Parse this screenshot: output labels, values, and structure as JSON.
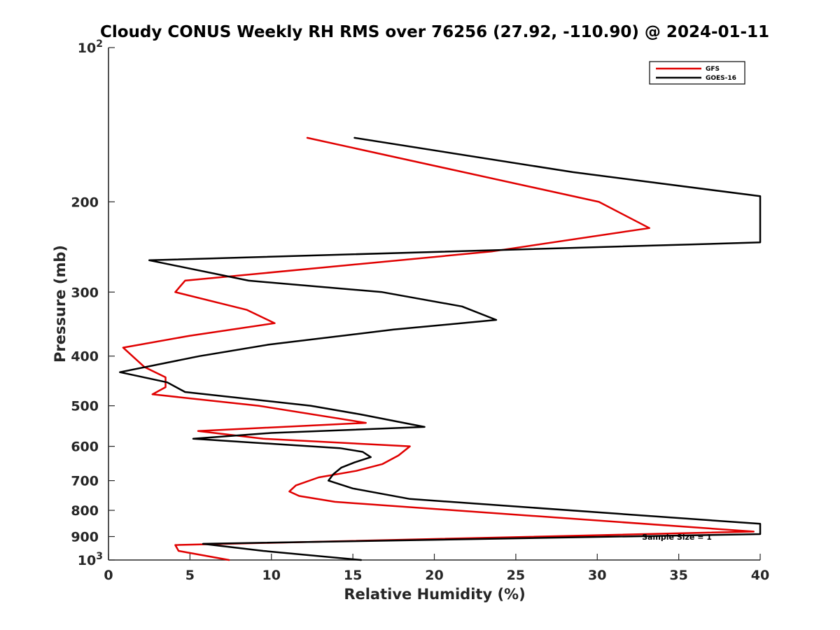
{
  "chart_data": {
    "type": "line",
    "title": "Cloudy CONUS Weekly RH RMS over 76256 (27.92, -110.90) @ 2024-01-11",
    "xlabel": "Relative Humidity (%)",
    "ylabel": "Pressure (mb)",
    "xlim": [
      0,
      40
    ],
    "ylim": [
      100,
      1000
    ],
    "yscale": "log",
    "yreversed": true,
    "grid": false,
    "legend_position": "top-right",
    "x_ticks": [
      "0",
      "5",
      "10",
      "15",
      "20",
      "25",
      "30",
      "35",
      "40"
    ],
    "x_tick_values": [
      0,
      5,
      10,
      15,
      20,
      25,
      30,
      35,
      40
    ],
    "y_ticks": [
      {
        "value": 100,
        "base": "10",
        "exp": "2",
        "label": ""
      },
      {
        "value": 200,
        "label": "200"
      },
      {
        "value": 300,
        "label": "300"
      },
      {
        "value": 400,
        "label": "400"
      },
      {
        "value": 500,
        "label": "500"
      },
      {
        "value": 600,
        "label": "600"
      },
      {
        "value": 700,
        "label": "700"
      },
      {
        "value": 800,
        "label": "800"
      },
      {
        "value": 900,
        "label": "900"
      },
      {
        "value": 1000,
        "base": "10",
        "exp": "3",
        "label": ""
      }
    ],
    "series": [
      {
        "name": "GFS",
        "color": "#e00000",
        "points": [
          [
            12.2,
            150
          ],
          [
            30.1,
            200
          ],
          [
            33.2,
            225
          ],
          [
            23.5,
            250
          ],
          [
            4.7,
            285
          ],
          [
            4.1,
            300
          ],
          [
            8.5,
            325
          ],
          [
            10.2,
            345
          ],
          [
            5.0,
            365
          ],
          [
            0.9,
            385
          ],
          [
            2.2,
            420
          ],
          [
            3.5,
            440
          ],
          [
            3.5,
            460
          ],
          [
            2.7,
            475
          ],
          [
            9.2,
            500
          ],
          [
            15.8,
            540
          ],
          [
            5.5,
            560
          ],
          [
            9.5,
            580
          ],
          [
            18.5,
            600
          ],
          [
            17.8,
            625
          ],
          [
            16.8,
            650
          ],
          [
            15.2,
            670
          ],
          [
            12.9,
            690
          ],
          [
            11.5,
            715
          ],
          [
            11.1,
            735
          ],
          [
            11.7,
            750
          ],
          [
            13.9,
            770
          ],
          [
            39.6,
            880
          ],
          [
            4.1,
            935
          ],
          [
            4.3,
            960
          ],
          [
            7.4,
            1000
          ]
        ]
      },
      {
        "name": "GOES-16",
        "color": "#000000",
        "points": [
          [
            15.1,
            150
          ],
          [
            28.5,
            175
          ],
          [
            40.0,
            195
          ],
          [
            40.0,
            240
          ],
          [
            2.5,
            260
          ],
          [
            8.6,
            285
          ],
          [
            16.8,
            300
          ],
          [
            21.7,
            320
          ],
          [
            23.8,
            340
          ],
          [
            17.5,
            355
          ],
          [
            9.8,
            380
          ],
          [
            5.6,
            400
          ],
          [
            0.7,
            430
          ],
          [
            3.6,
            450
          ],
          [
            4.7,
            470
          ],
          [
            12.4,
            500
          ],
          [
            15.5,
            520
          ],
          [
            19.4,
            550
          ],
          [
            10.0,
            565
          ],
          [
            5.2,
            580
          ],
          [
            14.2,
            605
          ],
          [
            15.6,
            615
          ],
          [
            16.1,
            630
          ],
          [
            15.1,
            645
          ],
          [
            14.3,
            660
          ],
          [
            13.8,
            680
          ],
          [
            13.5,
            700
          ],
          [
            15.0,
            725
          ],
          [
            18.5,
            760
          ],
          [
            40.0,
            850
          ],
          [
            40.0,
            890
          ],
          [
            5.8,
            930
          ],
          [
            9.5,
            960
          ],
          [
            15.5,
            1000
          ]
        ]
      }
    ],
    "annotation": "Sample Size = 1"
  }
}
